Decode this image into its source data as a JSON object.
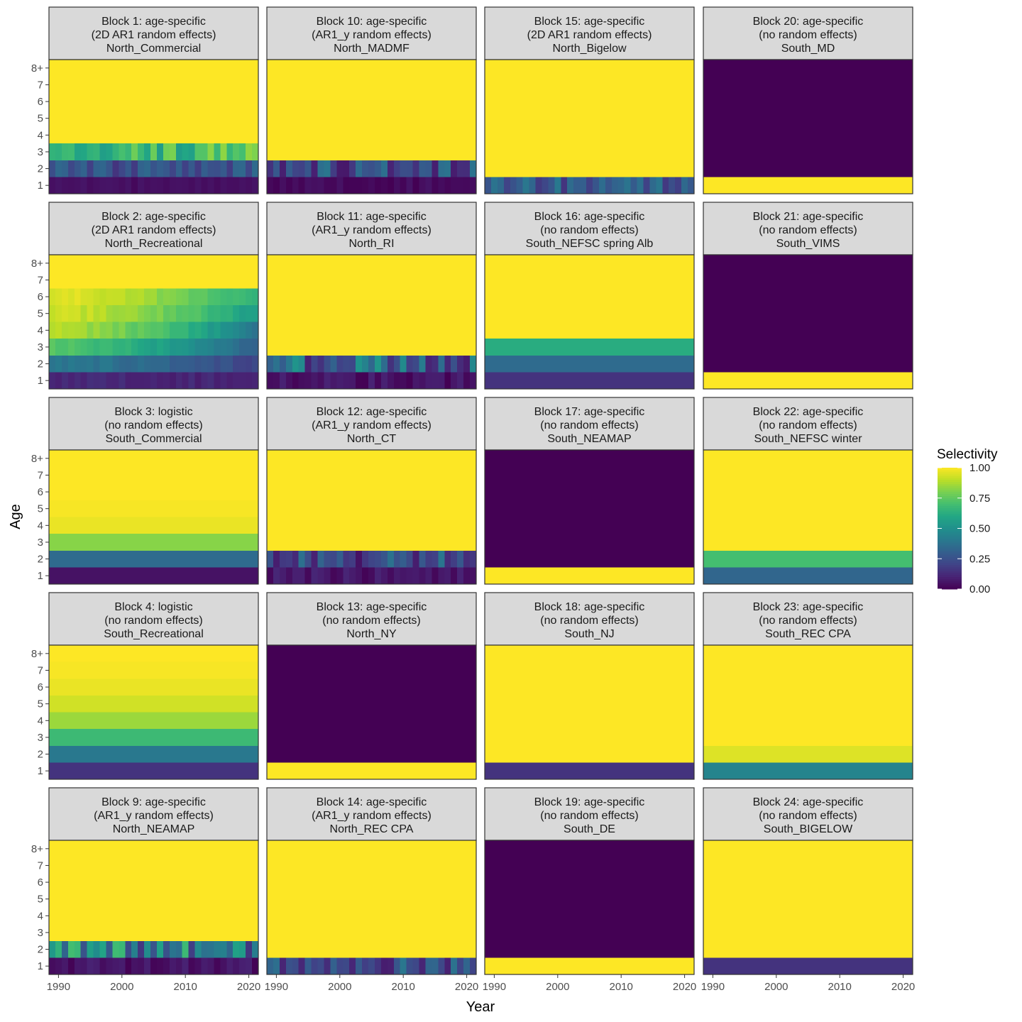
{
  "chart_data": {
    "type": "heatmap",
    "xlabel": "Year",
    "ylabel": "Age",
    "x_ticks": [
      "1990",
      "2000",
      "2010",
      "2020"
    ],
    "y_ticks": [
      "1",
      "2",
      "3",
      "4",
      "5",
      "6",
      "7",
      "8+"
    ],
    "year_range": [
      1989,
      2021
    ],
    "colorscale": "viridis",
    "legend": {
      "title": "Selectivity",
      "ticks": [
        "0.00",
        "0.25",
        "0.50",
        "0.75",
        "1.00"
      ],
      "range": [
        0,
        1
      ],
      "position": "right"
    },
    "panels": [
      {
        "title": [
          "Block 1: age-specific",
          "(2D AR1 random effects)",
          "North_Commercial"
        ],
        "kind": "variable",
        "ages": [
          0.05,
          0.25,
          0.72,
          1,
          1,
          1,
          1,
          1
        ],
        "var": {
          "0": [
            0.02,
            0.06
          ],
          "1": [
            0.15,
            0.35
          ],
          "2": [
            0.55,
            0.85
          ]
        }
      },
      {
        "title": [
          "Block 10: age-specific",
          "(AR1_y random effects)",
          "North_MADMF"
        ],
        "kind": "variable",
        "ages": [
          0.03,
          0.2,
          1,
          1,
          1,
          1,
          1,
          1
        ],
        "var": {
          "0": [
            0.0,
            0.06
          ],
          "1": [
            0.05,
            0.4
          ]
        }
      },
      {
        "title": [
          "Block 15: age-specific",
          "(2D AR1 random effects)",
          "North_Bigelow"
        ],
        "kind": "variable",
        "ages": [
          0.25,
          1,
          1,
          1,
          1,
          1,
          1,
          1
        ],
        "var": {
          "0": [
            0.15,
            0.4
          ]
        }
      },
      {
        "title": [
          "Block 20: age-specific",
          "(no random effects)",
          "South_MD"
        ],
        "kind": "const",
        "ages": [
          1,
          0,
          0,
          0,
          0,
          0,
          0,
          0
        ]
      },
      {
        "title": [
          "Block 2: age-specific",
          "(2D AR1 random effects)",
          "North_Recreational"
        ],
        "kind": "rec",
        "ages": [
          0.1,
          0.35,
          0.65,
          0.85,
          0.9,
          0.92,
          1,
          1
        ]
      },
      {
        "title": [
          "Block 11: age-specific",
          "(AR1_y random effects)",
          "North_RI"
        ],
        "kind": "variable",
        "ages": [
          0.05,
          0.2,
          1,
          1,
          1,
          1,
          1,
          1
        ],
        "var": {
          "0": [
            0.0,
            0.1
          ],
          "1": [
            0.05,
            0.55
          ]
        }
      },
      {
        "title": [
          "Block 16: age-specific",
          "(no random effects)",
          "South_NEFSC spring Alb"
        ],
        "kind": "const",
        "ages": [
          0.15,
          0.35,
          0.62,
          1,
          1,
          1,
          1,
          1
        ]
      },
      {
        "title": [
          "Block 21: age-specific",
          "(no random effects)",
          "South_VIMS"
        ],
        "kind": "const",
        "ages": [
          1,
          0,
          0,
          0,
          0,
          0,
          0,
          0
        ]
      },
      {
        "title": [
          "Block 3: logistic",
          "(no random effects)",
          "South_Commercial"
        ],
        "kind": "const",
        "ages": [
          0.05,
          0.35,
          0.82,
          0.97,
          0.99,
          1,
          1,
          1
        ]
      },
      {
        "title": [
          "Block 12: age-specific",
          "(AR1_y random effects)",
          "North_CT"
        ],
        "kind": "variable",
        "ages": [
          0.05,
          0.15,
          1,
          1,
          1,
          1,
          1,
          1
        ],
        "var": {
          "0": [
            0.0,
            0.12
          ],
          "1": [
            0.05,
            0.4
          ]
        }
      },
      {
        "title": [
          "Block 17: age-specific",
          "(no random effects)",
          "South_NEAMAP"
        ],
        "kind": "const",
        "ages": [
          1,
          0,
          0,
          0,
          0,
          0,
          0,
          0
        ]
      },
      {
        "title": [
          "Block 22: age-specific",
          "(no random effects)",
          "South_NEFSC winter"
        ],
        "kind": "const",
        "ages": [
          0.33,
          0.7,
          1,
          1,
          1,
          1,
          1,
          1
        ]
      },
      {
        "title": [
          "Block 4: logistic",
          "(no random effects)",
          "South_Recreational"
        ],
        "kind": "const",
        "ages": [
          0.15,
          0.4,
          0.68,
          0.85,
          0.93,
          0.97,
          0.99,
          1
        ]
      },
      {
        "title": [
          "Block 13: age-specific",
          "(no random effects)",
          "North_NY"
        ],
        "kind": "const",
        "ages": [
          1,
          0,
          0,
          0,
          0,
          0,
          0,
          0
        ]
      },
      {
        "title": [
          "Block 18: age-specific",
          "(no random effects)",
          "South_NJ"
        ],
        "kind": "const",
        "ages": [
          0.15,
          1,
          1,
          1,
          1,
          1,
          1,
          1
        ]
      },
      {
        "title": [
          "Block 23: age-specific",
          "(no random effects)",
          "South_REC CPA"
        ],
        "kind": "const",
        "ages": [
          0.45,
          0.95,
          1,
          1,
          1,
          1,
          1,
          1
        ]
      },
      {
        "title": [
          "Block 9: age-specific",
          "(AR1_y random effects)",
          "North_NEAMAP"
        ],
        "kind": "variable",
        "ages": [
          0.05,
          0.45,
          1,
          1,
          1,
          1,
          1,
          1
        ],
        "var": {
          "0": [
            0.0,
            0.1
          ],
          "1": [
            0.15,
            0.7
          ]
        }
      },
      {
        "title": [
          "Block 14: age-specific",
          "(AR1_y random effects)",
          "North_REC CPA"
        ],
        "kind": "variable",
        "ages": [
          0.15,
          1,
          1,
          1,
          1,
          1,
          1,
          1
        ],
        "var": {
          "0": [
            0.08,
            0.4
          ]
        }
      },
      {
        "title": [
          "Block 19: age-specific",
          "(no random effects)",
          "South_DE"
        ],
        "kind": "const",
        "ages": [
          1,
          0,
          0,
          0,
          0,
          0,
          0,
          0
        ]
      },
      {
        "title": [
          "Block 24: age-specific",
          "(no random effects)",
          "South_BIGELOW"
        ],
        "kind": "const",
        "ages": [
          0.15,
          1,
          1,
          1,
          1,
          1,
          1,
          1
        ]
      }
    ]
  }
}
